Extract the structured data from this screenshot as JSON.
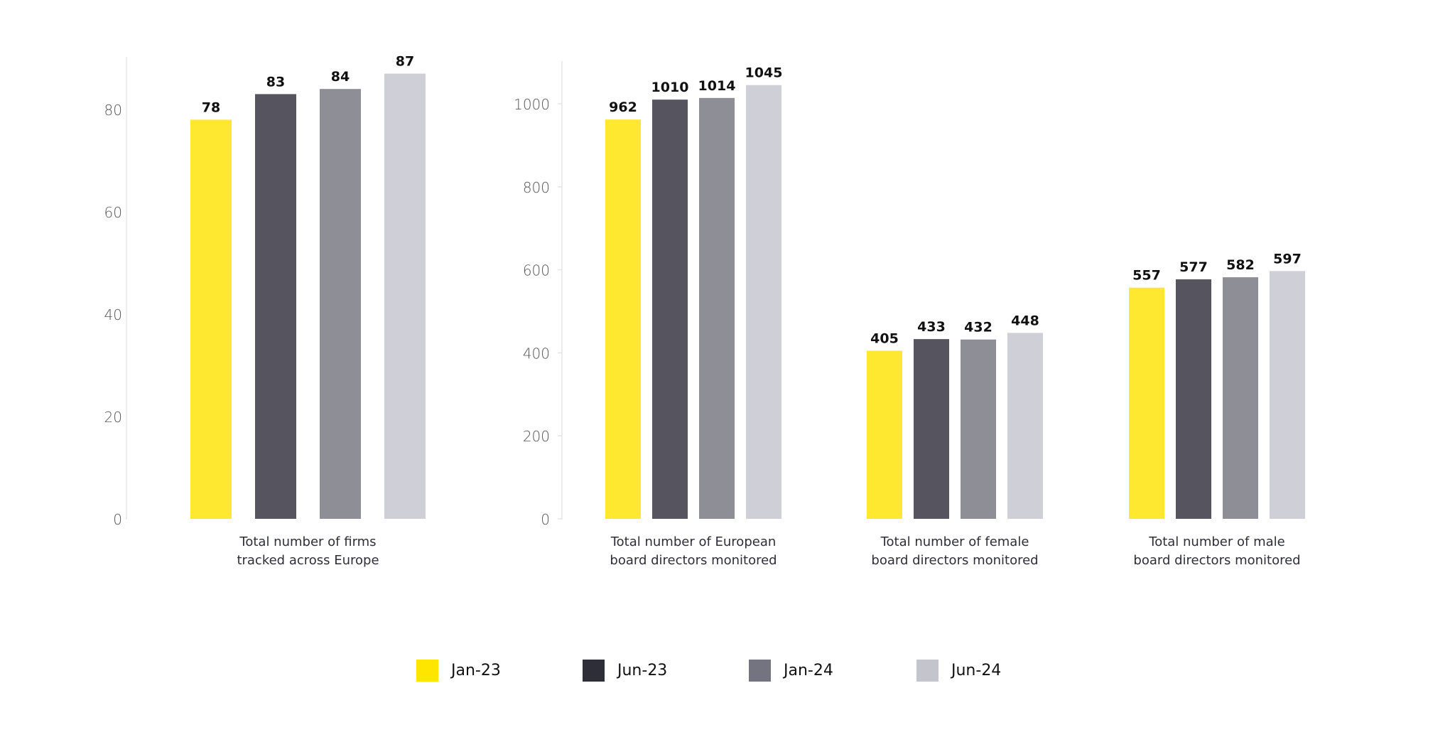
{
  "chart_data": [
    {
      "type": "bar",
      "title": "",
      "caption": [
        "Total number of firms",
        "tracked across Europe"
      ],
      "xlabel": "Total number of firms tracked across Europe",
      "ylabel": "",
      "ylim": [
        0,
        90
      ],
      "yticks": [
        0,
        20,
        40,
        60,
        80
      ],
      "categories": [
        "Jan-23",
        "Jun-23",
        "Jan-24",
        "Jun-24"
      ],
      "values": [
        78,
        83,
        84,
        87
      ],
      "show_axis": true,
      "grid": false
    },
    {
      "type": "bar",
      "title": "",
      "caption": [
        "Total number of European",
        "board directors monitored"
      ],
      "xlabel": "Total number of European board directors monitored",
      "ylabel": "",
      "ylim": [
        0,
        1100
      ],
      "yticks": [
        0,
        200,
        400,
        600,
        800,
        1000
      ],
      "categories": [
        "Jan-23",
        "Jun-23",
        "Jan-24",
        "Jun-24"
      ],
      "values": [
        962,
        1010,
        1014,
        1045
      ],
      "show_axis": true,
      "grid": false
    },
    {
      "type": "bar",
      "title": "",
      "caption": [
        "Total number of female",
        "board directors monitored"
      ],
      "xlabel": "Total number of female board directors monitored",
      "ylabel": "",
      "ylim": [
        0,
        1100
      ],
      "yticks": [],
      "categories": [
        "Jan-23",
        "Jun-23",
        "Jan-24",
        "Jun-24"
      ],
      "values": [
        405,
        433,
        432,
        448
      ],
      "show_axis": false,
      "grid": false
    },
    {
      "type": "bar",
      "title": "",
      "caption": [
        "Total number of male",
        "board directors monitored"
      ],
      "xlabel": "Total number of male board directors monitored",
      "ylabel": "",
      "ylim": [
        0,
        1100
      ],
      "yticks": [],
      "categories": [
        "Jan-23",
        "Jun-23",
        "Jan-24",
        "Jun-24"
      ],
      "values": [
        557,
        577,
        582,
        597
      ],
      "show_axis": false,
      "grid": false
    }
  ],
  "series_colors": {
    "bars": [
      "#FFE82F",
      "#56555F",
      "#8E8E97",
      "#CFCFD7"
    ],
    "legend": [
      "#FFE600",
      "#2E2E38",
      "#747480",
      "#C4C4CD"
    ]
  },
  "legend": {
    "placement": "bottom-center",
    "items": [
      {
        "label": "Jan-23",
        "color": "#FFE600"
      },
      {
        "label": "Jun-23",
        "color": "#2E2E38"
      },
      {
        "label": "Jan-24",
        "color": "#747480"
      },
      {
        "label": "Jun-24",
        "color": "#C4C4CD"
      }
    ]
  }
}
